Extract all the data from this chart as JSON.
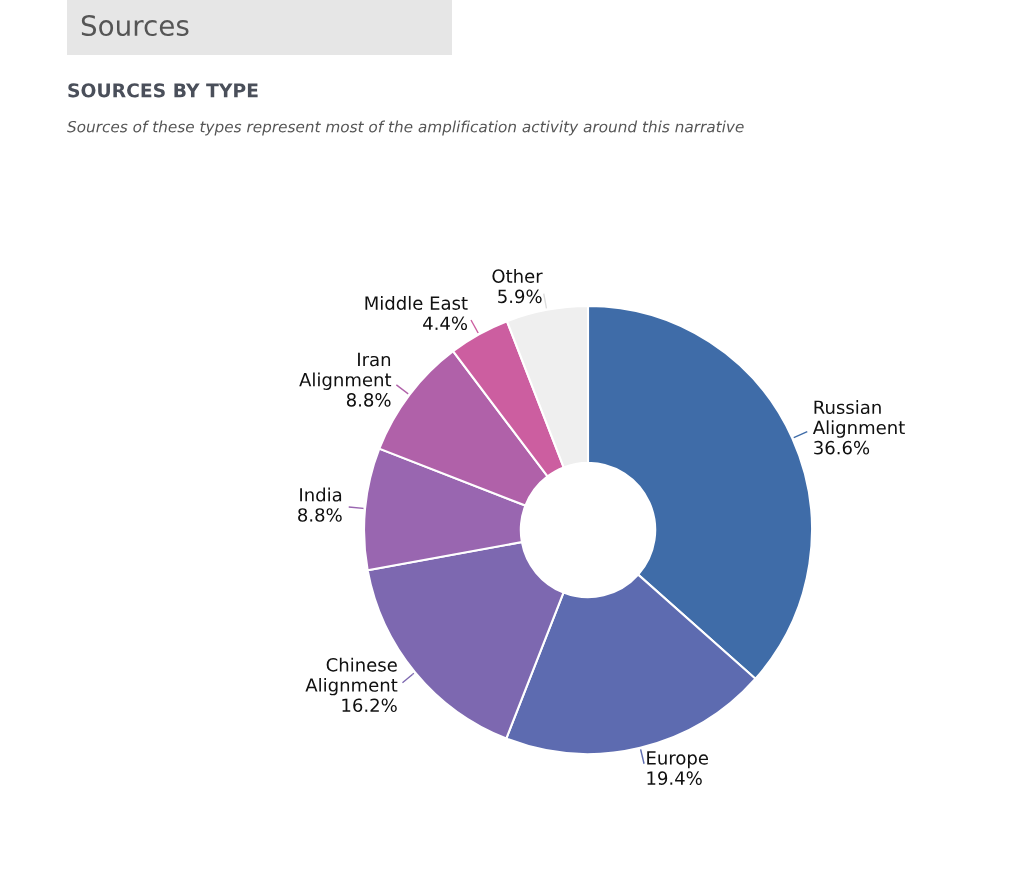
{
  "chart_data": {
    "type": "donut",
    "title": "SOURCES BY TYPE",
    "subtitle": "Sources of these types represent most of the amplification activity around this narrative",
    "annotations": [
      "Sources"
    ],
    "categories": [
      "Russian\nAlignment",
      "Europe",
      "Chinese\nAlignment",
      "India",
      "Iran\nAlignment",
      "Middle East",
      "Other"
    ],
    "values": [
      36.6,
      19.4,
      16.2,
      8.8,
      8.8,
      4.4,
      5.9
    ],
    "value_labels": [
      "36.6%",
      "19.4%",
      "16.2%",
      "8.8%",
      "8.8%",
      "4.4%",
      "5.9%"
    ],
    "colors": [
      "#3f6ca8",
      "#5d6bb0",
      "#7d68b0",
      "#9966b0",
      "#b061a9",
      "#cc5ea0",
      "#efefef"
    ],
    "legend": false
  }
}
